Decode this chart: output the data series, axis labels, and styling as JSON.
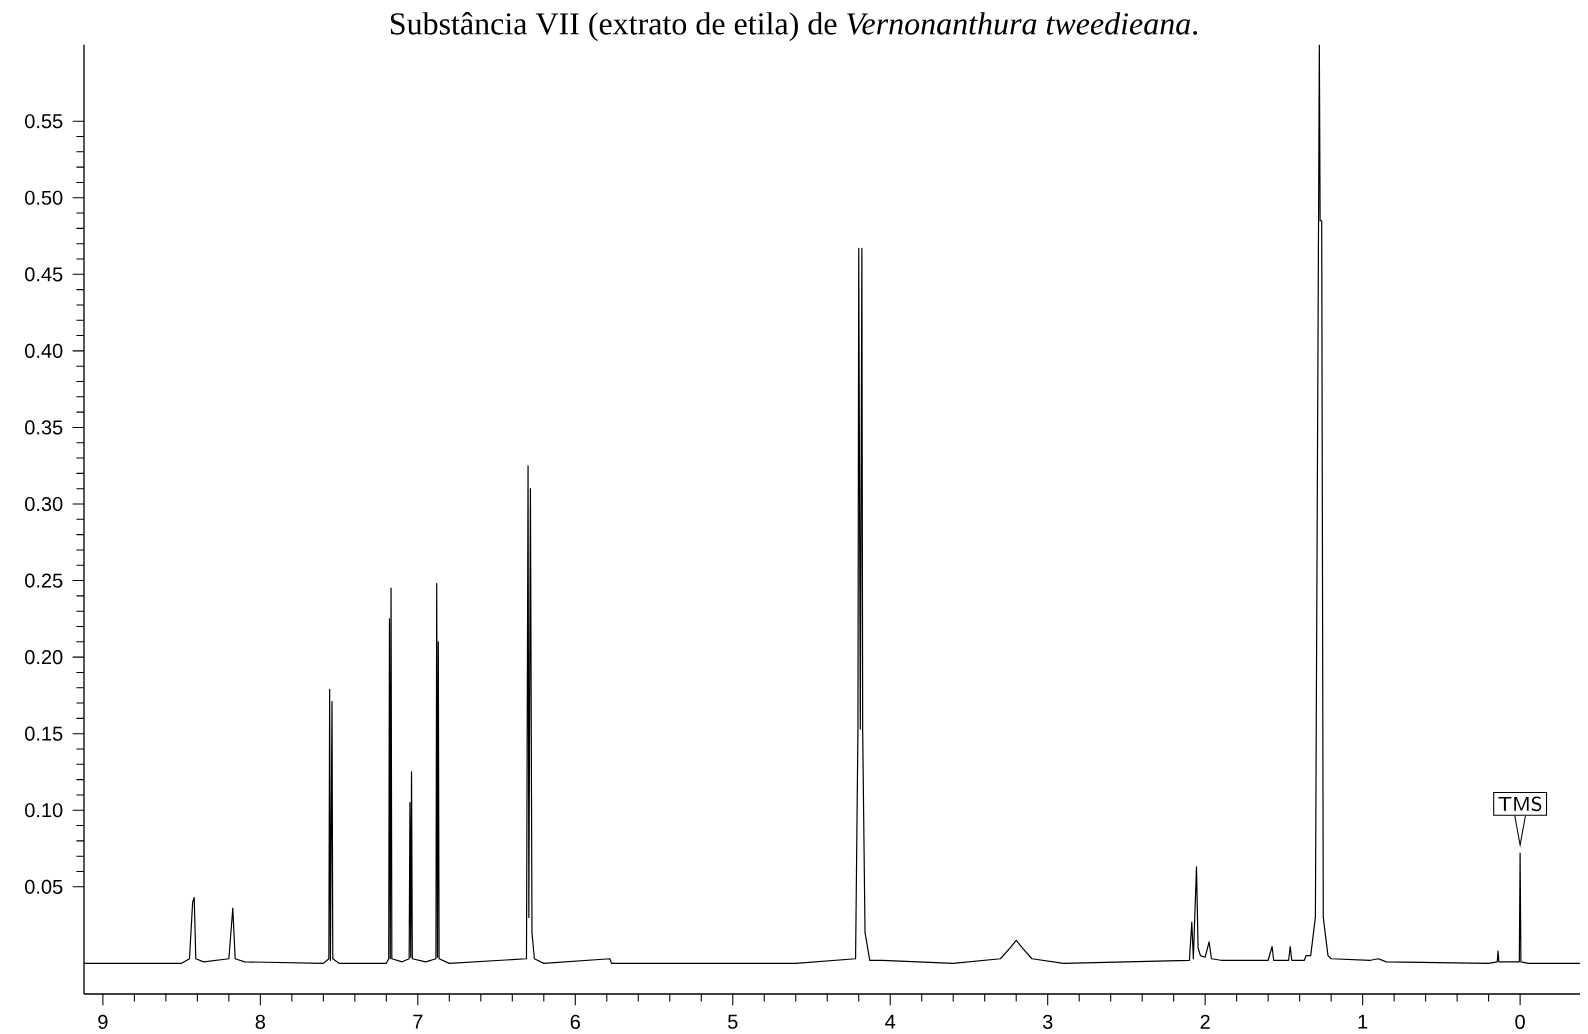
{
  "chart_data": {
    "type": "line",
    "title": "Substância VII (extrato de etila) de *Vernonanthura tweedieana*.",
    "xlim": [
      9.12,
      -0.38
    ],
    "ylim": [
      -0.02,
      0.6
    ],
    "xticks": [
      9,
      8,
      7,
      6,
      5,
      4,
      3,
      2,
      1,
      0
    ],
    "yticks": [
      {
        "value": 0.05,
        "label": "0.05"
      },
      {
        "value": 0.1,
        "label": "0.10"
      },
      {
        "value": 0.15,
        "label": "0.15"
      },
      {
        "value": 0.2,
        "label": "0.20"
      },
      {
        "value": 0.25,
        "label": "0.25"
      },
      {
        "value": 0.3,
        "label": "0.30"
      },
      {
        "value": 0.35,
        "label": "0.35"
      },
      {
        "value": 0.4,
        "label": "0.40"
      },
      {
        "value": 0.45,
        "label": "0.45"
      },
      {
        "value": 0.5,
        "label": "0.50"
      },
      {
        "value": 0.55,
        "label": "0.55"
      }
    ],
    "grid": false,
    "marker": "none",
    "line_style": "solid",
    "annotations": [
      {
        "text": "TMS",
        "x": 0,
        "y": 0.072
      }
    ],
    "series": [
      {
        "color": "#000000",
        "x": [
          9.12,
          8.5,
          8.45,
          8.43,
          8.42,
          8.41,
          8.36,
          8.2,
          8.175,
          8.16,
          8.1,
          7.6,
          7.565,
          7.56,
          7.555,
          7.545,
          7.54,
          7.5,
          7.2,
          7.185,
          7.18,
          7.175,
          7.17,
          7.165,
          7.1,
          7.055,
          7.05,
          7.045,
          7.04,
          7.035,
          6.95,
          6.885,
          6.88,
          6.875,
          6.87,
          6.865,
          6.8,
          6.31,
          6.3,
          6.295,
          6.285,
          6.275,
          6.26,
          6.2,
          5.78,
          5.77,
          4.6,
          4.22,
          4.205,
          4.2,
          4.19,
          4.18,
          4.175,
          4.16,
          4.13,
          4.05,
          3.6,
          3.3,
          3.24,
          3.2,
          3.16,
          3.1,
          2.9,
          2.5,
          2.1,
          2.085,
          2.075,
          2.055,
          2.045,
          2.03,
          2.0,
          1.975,
          1.96,
          1.9,
          1.6,
          1.575,
          1.565,
          1.47,
          1.46,
          1.45,
          1.37,
          1.36,
          1.33,
          1.3,
          1.28,
          1.275,
          1.27,
          1.26,
          1.25,
          1.22,
          1.2,
          0.95,
          0.9,
          0.85,
          0.2,
          0.145,
          0.14,
          0.135,
          0.005,
          0,
          -0.005,
          -0.05,
          -0.38
        ],
        "values": [
          0,
          0,
          0.003,
          0.04,
          0.043,
          0.003,
          0.001,
          0.003,
          0.036,
          0.003,
          0.001,
          0,
          0.003,
          0.179,
          0.002,
          0.171,
          0.003,
          0,
          0,
          0.003,
          0.225,
          0.003,
          0.245,
          0.003,
          0.001,
          0.003,
          0.105,
          0.004,
          0.125,
          0.003,
          0.001,
          0.003,
          0.248,
          0.004,
          0.21,
          0.003,
          0,
          0.003,
          0.325,
          0.03,
          0.31,
          0.02,
          0.003,
          0,
          0.003,
          0,
          0,
          0.003,
          0.153,
          0.467,
          0.153,
          0.467,
          0.153,
          0.02,
          0.002,
          0.002,
          0,
          0.003,
          0.01,
          0.015,
          0.01,
          0.003,
          0,
          0.001,
          0.002,
          0.027,
          0.003,
          0.063,
          0.01,
          0.005,
          0.004,
          0.014,
          0.003,
          0.002,
          0.002,
          0.011,
          0.002,
          0.002,
          0.011,
          0.002,
          0.002,
          0.005,
          0.005,
          0.03,
          0.485,
          0.6,
          0.485,
          0.485,
          0.03,
          0.005,
          0.003,
          0.002,
          0.003,
          0.001,
          0,
          0.001,
          0.008,
          0.001,
          0.001,
          0.072,
          0.001,
          0,
          0
        ]
      }
    ]
  }
}
